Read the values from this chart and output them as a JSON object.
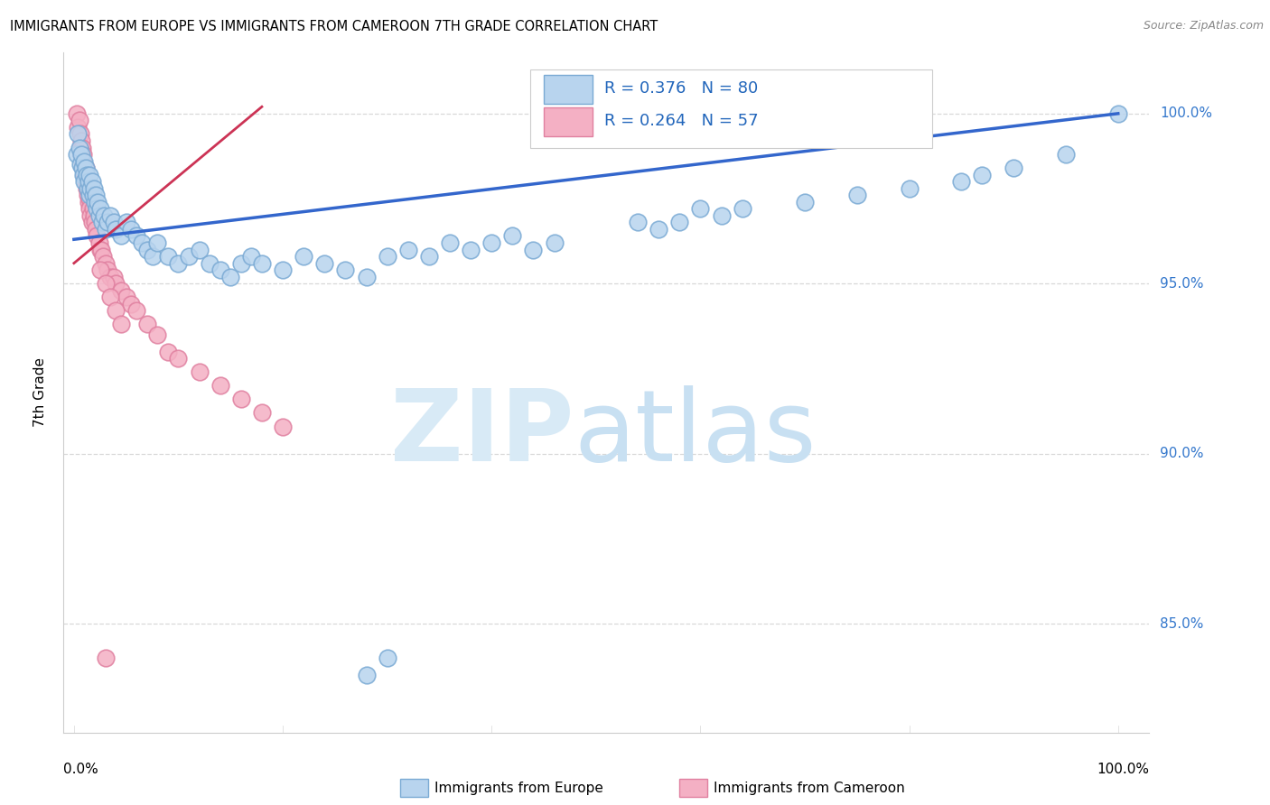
{
  "title": "IMMIGRANTS FROM EUROPE VS IMMIGRANTS FROM CAMEROON 7TH GRADE CORRELATION CHART",
  "source": "Source: ZipAtlas.com",
  "ylabel": "7th Grade",
  "xlim": [
    -0.01,
    1.03
  ],
  "ylim": [
    0.818,
    1.018
  ],
  "ytick_values": [
    0.85,
    0.9,
    0.95,
    1.0
  ],
  "ytick_labels": [
    "85.0%",
    "90.0%",
    "95.0%",
    "100.0%"
  ],
  "blue_color": "#b8d4ee",
  "blue_edge_color": "#7aaad4",
  "pink_color": "#f4b0c4",
  "pink_edge_color": "#e080a0",
  "blue_line_color": "#3366cc",
  "pink_line_color": "#cc3355",
  "grid_color": "#d8d8d8",
  "watermark_zip_color": "#d8eaf6",
  "watermark_atlas_color": "#c8e0f2",
  "R_blue": 0.376,
  "N_blue": 80,
  "R_pink": 0.264,
  "N_pink": 57,
  "legend_blue_label": "Immigrants from Europe",
  "legend_pink_label": "Immigrants from Cameroon",
  "blue_x": [
    0.003,
    0.004,
    0.005,
    0.006,
    0.007,
    0.008,
    0.009,
    0.01,
    0.01,
    0.011,
    0.012,
    0.013,
    0.014,
    0.015,
    0.015,
    0.016,
    0.017,
    0.018,
    0.019,
    0.02,
    0.021,
    0.022,
    0.023,
    0.024,
    0.025,
    0.027,
    0.029,
    0.03,
    0.032,
    0.035,
    0.038,
    0.04,
    0.045,
    0.05,
    0.055,
    0.06,
    0.065,
    0.07,
    0.075,
    0.08,
    0.09,
    0.1,
    0.11,
    0.12,
    0.13,
    0.14,
    0.15,
    0.16,
    0.17,
    0.18,
    0.2,
    0.22,
    0.24,
    0.26,
    0.28,
    0.3,
    0.32,
    0.34,
    0.36,
    0.38,
    0.4,
    0.42,
    0.44,
    0.46,
    0.54,
    0.56,
    0.58,
    0.6,
    0.62,
    0.64,
    0.7,
    0.75,
    0.8,
    0.85,
    0.87,
    0.9,
    0.95,
    1.0,
    0.28,
    0.3
  ],
  "blue_y": [
    0.988,
    0.994,
    0.99,
    0.985,
    0.988,
    0.984,
    0.982,
    0.986,
    0.98,
    0.984,
    0.982,
    0.978,
    0.98,
    0.976,
    0.982,
    0.978,
    0.98,
    0.976,
    0.978,
    0.974,
    0.976,
    0.972,
    0.974,
    0.97,
    0.972,
    0.968,
    0.97,
    0.966,
    0.968,
    0.97,
    0.968,
    0.966,
    0.964,
    0.968,
    0.966,
    0.964,
    0.962,
    0.96,
    0.958,
    0.962,
    0.958,
    0.956,
    0.958,
    0.96,
    0.956,
    0.954,
    0.952,
    0.956,
    0.958,
    0.956,
    0.954,
    0.958,
    0.956,
    0.954,
    0.952,
    0.958,
    0.96,
    0.958,
    0.962,
    0.96,
    0.962,
    0.964,
    0.96,
    0.962,
    0.968,
    0.966,
    0.968,
    0.972,
    0.97,
    0.972,
    0.974,
    0.976,
    0.978,
    0.98,
    0.982,
    0.984,
    0.988,
    1.0,
    0.835,
    0.84
  ],
  "pink_x": [
    0.003,
    0.004,
    0.005,
    0.006,
    0.006,
    0.007,
    0.007,
    0.008,
    0.008,
    0.009,
    0.009,
    0.01,
    0.01,
    0.011,
    0.011,
    0.012,
    0.012,
    0.013,
    0.013,
    0.014,
    0.015,
    0.015,
    0.016,
    0.017,
    0.018,
    0.019,
    0.02,
    0.021,
    0.022,
    0.024,
    0.025,
    0.026,
    0.028,
    0.03,
    0.032,
    0.035,
    0.038,
    0.04,
    0.045,
    0.05,
    0.055,
    0.06,
    0.07,
    0.08,
    0.09,
    0.1,
    0.12,
    0.14,
    0.16,
    0.18,
    0.2,
    0.025,
    0.03,
    0.035,
    0.04,
    0.045,
    0.03
  ],
  "pink_y": [
    1.0,
    0.996,
    0.998,
    0.994,
    0.99,
    0.992,
    0.988,
    0.99,
    0.986,
    0.984,
    0.988,
    0.985,
    0.982,
    0.984,
    0.98,
    0.978,
    0.982,
    0.978,
    0.976,
    0.974,
    0.975,
    0.972,
    0.97,
    0.968,
    0.972,
    0.97,
    0.968,
    0.966,
    0.964,
    0.962,
    0.96,
    0.96,
    0.958,
    0.956,
    0.954,
    0.952,
    0.952,
    0.95,
    0.948,
    0.946,
    0.944,
    0.942,
    0.938,
    0.935,
    0.93,
    0.928,
    0.924,
    0.92,
    0.916,
    0.912,
    0.908,
    0.954,
    0.95,
    0.946,
    0.942,
    0.938,
    0.84
  ]
}
